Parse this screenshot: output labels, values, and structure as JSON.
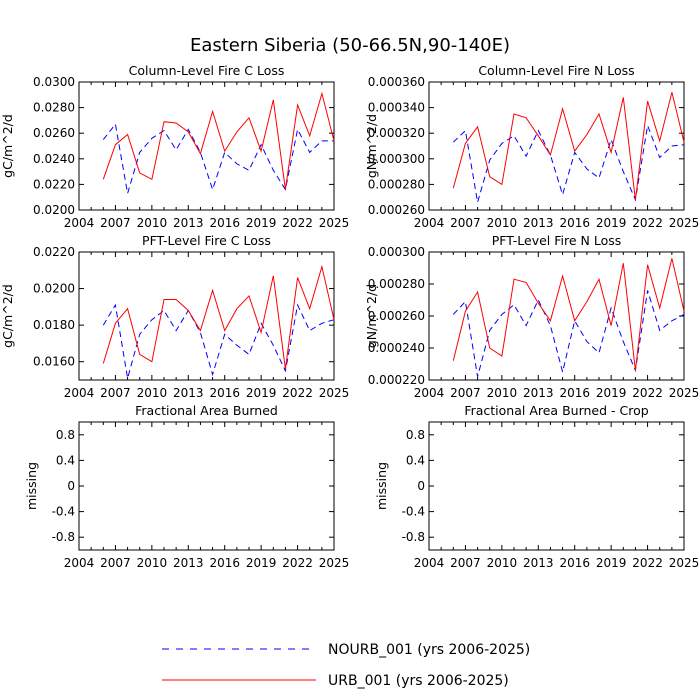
{
  "figure_title": "Eastern Siberia (50-66.5N,90-140E)",
  "legend": {
    "series": [
      {
        "name": "NOURB_001 (yrs 2006-2025)",
        "color": "#0000ff",
        "dash": true
      },
      {
        "name": "URB_001 (yrs 2006-2025)",
        "color": "#ff0000",
        "dash": false
      }
    ]
  },
  "chart_data": [
    {
      "type": "line",
      "title": "Column-Level Fire C Loss",
      "ylabel": "gC/m^2/d",
      "xlim": [
        2004,
        2025
      ],
      "ylim": [
        0.02,
        0.03
      ],
      "xticks": [
        "2004",
        "2007",
        "2010",
        "2013",
        "2016",
        "2019",
        "2022",
        "2025"
      ],
      "yticks": [
        "0.0200",
        "0.0220",
        "0.0240",
        "0.0260",
        "0.0280",
        "0.0300"
      ],
      "x": [
        2006,
        2007,
        2008,
        2009,
        2010,
        2011,
        2012,
        2013,
        2014,
        2015,
        2016,
        2017,
        2018,
        2019,
        2020,
        2021,
        2022,
        2023,
        2024,
        2025
      ],
      "series": [
        {
          "name": "NOURB_001 (yrs 2006-2025)",
          "values": [
            0.0255,
            0.0267,
            0.0213,
            0.0245,
            0.0256,
            0.0262,
            0.0247,
            0.0263,
            0.0245,
            0.0216,
            0.0245,
            0.0236,
            0.0231,
            0.0251,
            0.0231,
            0.0216,
            0.0263,
            0.0245,
            0.0254,
            0.0254
          ]
        },
        {
          "name": "URB_001 (yrs 2006-2025)",
          "values": [
            0.0224,
            0.0251,
            0.0259,
            0.0229,
            0.0224,
            0.0269,
            0.0268,
            0.0261,
            0.0244,
            0.0277,
            0.0246,
            0.0261,
            0.0272,
            0.0246,
            0.0286,
            0.0216,
            0.0282,
            0.0258,
            0.0291,
            0.0254
          ]
        }
      ]
    },
    {
      "type": "line",
      "title": "Column-Level Fire N Loss",
      "ylabel": "gN/m^2/d",
      "xlim": [
        2004,
        2025
      ],
      "ylim": [
        0.00026,
        0.00036
      ],
      "xticks": [
        "2004",
        "2007",
        "2010",
        "2013",
        "2016",
        "2019",
        "2022",
        "2025"
      ],
      "yticks": [
        "0.000260",
        "0.000280",
        "0.000300",
        "0.000320",
        "0.000340",
        "0.000360"
      ],
      "x": [
        2006,
        2007,
        2008,
        2009,
        2010,
        2011,
        2012,
        2013,
        2014,
        2015,
        2016,
        2017,
        2018,
        2019,
        2020,
        2021,
        2022,
        2023,
        2024,
        2025
      ],
      "series": [
        {
          "name": "NOURB_001 (yrs 2006-2025)",
          "values": [
            0.000313,
            0.000322,
            0.000266,
            0.000299,
            0.000312,
            0.000318,
            0.000302,
            0.000322,
            0.000303,
            0.000272,
            0.000305,
            0.000292,
            0.000285,
            0.000315,
            0.00029,
            0.000268,
            0.000326,
            0.000301,
            0.00031,
            0.000311
          ]
        },
        {
          "name": "URB_001 (yrs 2006-2025)",
          "values": [
            0.000277,
            0.000312,
            0.000325,
            0.000286,
            0.00028,
            0.000335,
            0.000332,
            0.000318,
            0.000303,
            0.000339,
            0.000306,
            0.000319,
            0.000335,
            0.000305,
            0.000348,
            0.000268,
            0.000345,
            0.000314,
            0.000352,
            0.000313
          ]
        }
      ]
    },
    {
      "type": "line",
      "title": "PFT-Level Fire C Loss",
      "ylabel": "gC/m^2/d",
      "xlim": [
        2004,
        2025
      ],
      "ylim": [
        0.015,
        0.022
      ],
      "xticks": [
        "2004",
        "2007",
        "2010",
        "2013",
        "2016",
        "2019",
        "2022",
        "2025"
      ],
      "yticks": [
        "0.0160",
        "0.0180",
        "0.0200",
        "0.0220"
      ],
      "x": [
        2006,
        2007,
        2008,
        2009,
        2010,
        2011,
        2012,
        2013,
        2014,
        2015,
        2016,
        2017,
        2018,
        2019,
        2020,
        2021,
        2022,
        2023,
        2024,
        2025
      ],
      "series": [
        {
          "name": "NOURB_001 (yrs 2006-2025)",
          "values": [
            0.018,
            0.0191,
            0.0151,
            0.0175,
            0.0183,
            0.0188,
            0.0177,
            0.0188,
            0.0176,
            0.0153,
            0.0175,
            0.0169,
            0.0164,
            0.0181,
            0.0169,
            0.0155,
            0.0191,
            0.0177,
            0.0181,
            0.0183
          ]
        },
        {
          "name": "URB_001 (yrs 2006-2025)",
          "values": [
            0.0159,
            0.0181,
            0.0189,
            0.0164,
            0.016,
            0.0194,
            0.0194,
            0.0188,
            0.0177,
            0.0199,
            0.0177,
            0.0189,
            0.0196,
            0.0176,
            0.0207,
            0.0156,
            0.0206,
            0.0189,
            0.0212,
            0.0183
          ]
        }
      ]
    },
    {
      "type": "line",
      "title": "PFT-Level Fire N Loss",
      "ylabel": "gN/m^2/d",
      "xlim": [
        2004,
        2025
      ],
      "ylim": [
        0.00022,
        0.0003
      ],
      "xticks": [
        "2004",
        "2007",
        "2010",
        "2013",
        "2016",
        "2019",
        "2022",
        "2025"
      ],
      "yticks": [
        "0.000220",
        "0.000240",
        "0.000260",
        "0.000280",
        "0.000300"
      ],
      "x": [
        2006,
        2007,
        2008,
        2009,
        2010,
        2011,
        2012,
        2013,
        2014,
        2015,
        2016,
        2017,
        2018,
        2019,
        2020,
        2021,
        2022,
        2023,
        2024,
        2025
      ],
      "series": [
        {
          "name": "NOURB_001 (yrs 2006-2025)",
          "values": [
            0.000261,
            0.000269,
            0.000222,
            0.000251,
            0.000261,
            0.000267,
            0.000254,
            0.00027,
            0.000254,
            0.000225,
            0.000257,
            0.000244,
            0.000237,
            0.000265,
            0.000244,
            0.000226,
            0.000276,
            0.000251,
            0.000257,
            0.000261
          ]
        },
        {
          "name": "URB_001 (yrs 2006-2025)",
          "values": [
            0.000232,
            0.000263,
            0.000275,
            0.00024,
            0.000235,
            0.000283,
            0.000281,
            0.000268,
            0.000257,
            0.000285,
            0.000257,
            0.000269,
            0.000283,
            0.000254,
            0.000293,
            0.000226,
            0.000292,
            0.000265,
            0.000296,
            0.000263
          ]
        }
      ]
    },
    {
      "type": "line",
      "title": "Fractional Area Burned",
      "ylabel": "missing",
      "xlim": [
        2004,
        2025
      ],
      "ylim": [
        -1,
        1
      ],
      "xticks": [
        "2004",
        "2007",
        "2010",
        "2013",
        "2016",
        "2019",
        "2022",
        "2025"
      ],
      "yticks": [
        "-0.8",
        "-0.4",
        "0",
        "0.4",
        "0.8"
      ],
      "x": [],
      "series": []
    },
    {
      "type": "line",
      "title": "Fractional Area Burned - Crop",
      "ylabel": "missing",
      "xlim": [
        2004,
        2025
      ],
      "ylim": [
        -1,
        1
      ],
      "xticks": [
        "2004",
        "2007",
        "2010",
        "2013",
        "2016",
        "2019",
        "2022",
        "2025"
      ],
      "yticks": [
        "-0.8",
        "-0.4",
        "0",
        "0.4",
        "0.8"
      ],
      "x": [],
      "series": []
    }
  ]
}
